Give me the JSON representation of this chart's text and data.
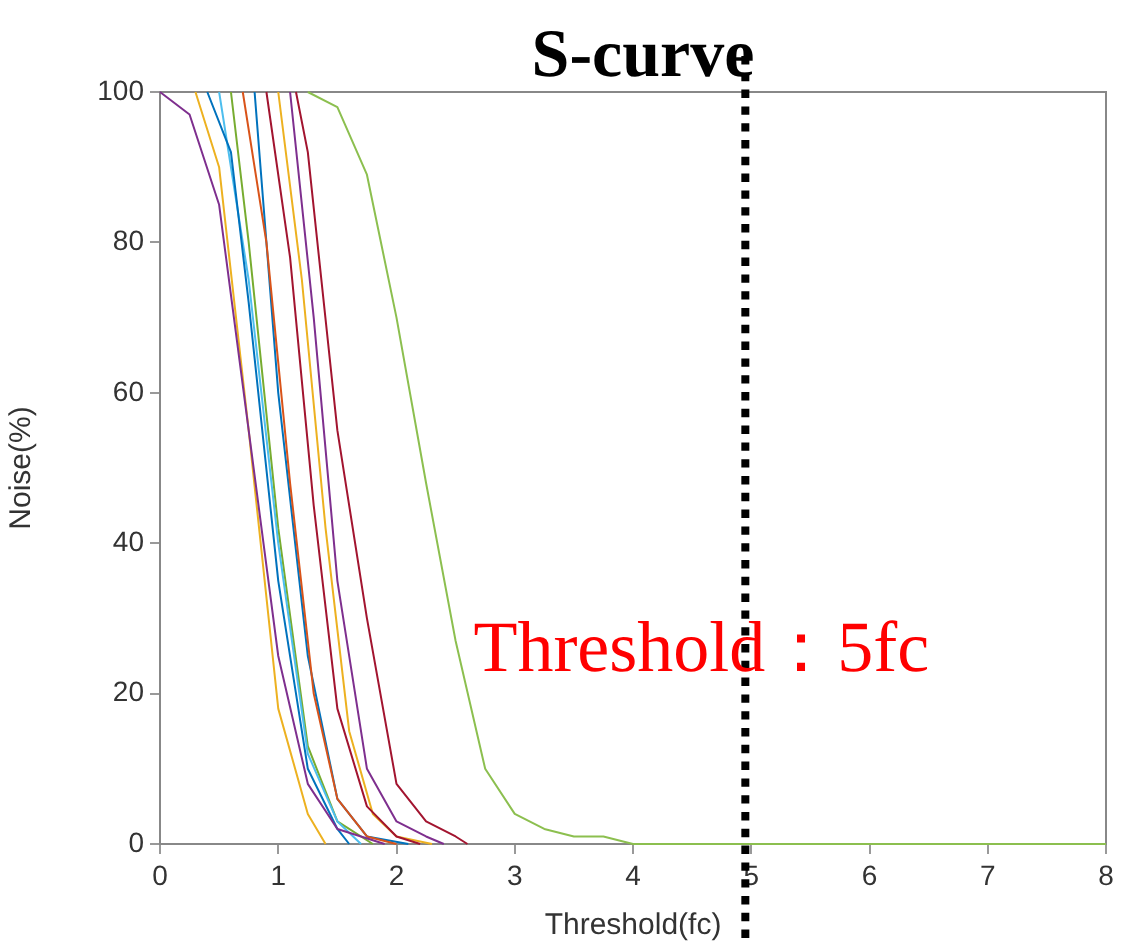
{
  "chart_data": {
    "type": "line",
    "title": "S-curve",
    "xlabel": "Threshold(fc)",
    "ylabel": "Noise(%)",
    "xlim": [
      0,
      8
    ],
    "xticks": [
      0,
      1,
      2,
      3,
      4,
      5,
      6,
      7,
      8
    ],
    "ylim": [
      0,
      100
    ],
    "yticks": [
      0,
      20,
      40,
      60,
      80,
      100
    ],
    "grid": false,
    "legend": false,
    "marker": "none",
    "line_style": "solid",
    "ref_lines": [
      {
        "axis": "x",
        "value": 4.95,
        "label": "Threshold：5fc",
        "color": "#000000",
        "line_style": "dotted"
      }
    ],
    "series": [
      {
        "color": "#7e2f8e",
        "x": [
          0,
          0.25,
          0.5,
          0.75,
          1,
          1.25,
          1.5,
          1.9
        ],
        "values": [
          100,
          97,
          85,
          55,
          25,
          8,
          2,
          0
        ]
      },
      {
        "color": "#edb120",
        "x": [
          0.3,
          0.5,
          0.75,
          1,
          1.25,
          1.4
        ],
        "values": [
          100,
          90,
          55,
          18,
          4,
          0
        ]
      },
      {
        "color": "#0072bd",
        "x": [
          0.4,
          0.6,
          0.75,
          1,
          1.25,
          1.5,
          1.6
        ],
        "values": [
          100,
          92,
          72,
          35,
          10,
          2,
          0
        ]
      },
      {
        "color": "#4dbeee",
        "x": [
          0.5,
          0.75,
          1,
          1.25,
          1.5,
          1.7
        ],
        "values": [
          100,
          75,
          40,
          12,
          3,
          0
        ]
      },
      {
        "color": "#77ac30",
        "x": [
          0.6,
          0.75,
          1,
          1.25,
          1.5,
          1.8
        ],
        "values": [
          100,
          80,
          42,
          13,
          3,
          0
        ]
      },
      {
        "color": "#d95319",
        "x": [
          0.7,
          0.9,
          1.1,
          1.3,
          1.5,
          1.75,
          2
        ],
        "values": [
          100,
          80,
          48,
          20,
          6,
          1,
          0
        ]
      },
      {
        "color": "#0072bd",
        "x": [
          0.8,
          1,
          1.25,
          1.5,
          1.75,
          2.1
        ],
        "values": [
          100,
          60,
          25,
          6,
          1,
          0
        ]
      },
      {
        "color": "#a2142f",
        "x": [
          0.9,
          1.1,
          1.3,
          1.5,
          1.75,
          2,
          2.2
        ],
        "values": [
          100,
          78,
          45,
          18,
          5,
          1,
          0
        ]
      },
      {
        "color": "#edb120",
        "x": [
          1,
          1.2,
          1.4,
          1.6,
          1.8,
          2,
          2.3
        ],
        "values": [
          100,
          75,
          42,
          15,
          4,
          1,
          0
        ]
      },
      {
        "color": "#7e2f8e",
        "x": [
          1.1,
          1.3,
          1.5,
          1.75,
          2,
          2.25,
          2.4
        ],
        "values": [
          100,
          70,
          35,
          10,
          3,
          1,
          0
        ]
      },
      {
        "color": "#a2142f",
        "x": [
          1.15,
          1.25,
          1.5,
          1.75,
          2,
          2.25,
          2.5,
          2.6
        ],
        "values": [
          100,
          92,
          55,
          30,
          8,
          3,
          1,
          0
        ]
      },
      {
        "color": "#8cbf4f",
        "x": [
          1.25,
          1.5,
          1.75,
          2,
          2.25,
          2.5,
          2.75,
          3,
          3.25,
          3.5,
          3.75,
          4,
          8
        ],
        "values": [
          100,
          98,
          89,
          70,
          48,
          27,
          10,
          4,
          2,
          1,
          1,
          0,
          0
        ]
      }
    ]
  }
}
